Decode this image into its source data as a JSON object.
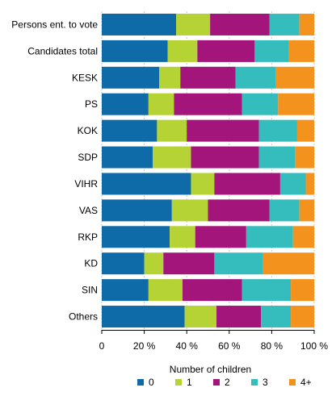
{
  "chart_data": {
    "type": "bar",
    "orientation": "horizontal",
    "stacked": true,
    "percent": true,
    "categories": [
      "Persons ent. to vote",
      "Candidates total",
      "KESK",
      "PS",
      "KOK",
      "SDP",
      "VIHR",
      "VAS",
      "RKP",
      "KD",
      "SIN",
      "Others"
    ],
    "series": [
      {
        "name": "0",
        "color": "#0f6ba8",
        "values": [
          35,
          31,
          27,
          22,
          26,
          24,
          42,
          33,
          32,
          20,
          22,
          39
        ]
      },
      {
        "name": "1",
        "color": "#b5d334",
        "values": [
          16,
          14,
          10,
          12,
          14,
          18,
          11,
          17,
          12,
          9,
          16,
          15
        ]
      },
      {
        "name": "2",
        "color": "#a3157a",
        "values": [
          28,
          27,
          26,
          32,
          34,
          32,
          31,
          29,
          24,
          24,
          28,
          21
        ]
      },
      {
        "name": "3",
        "color": "#35bcbd",
        "values": [
          14,
          16,
          19,
          17,
          18,
          17,
          12,
          14,
          22,
          23,
          23,
          14
        ]
      },
      {
        "name": "4+",
        "color": "#f4921e",
        "values": [
          7,
          12,
          18,
          17,
          8,
          9,
          4,
          7,
          10,
          24,
          11,
          11
        ]
      }
    ],
    "xlim": [
      0,
      100
    ],
    "x_ticks": [
      "0",
      "20 %",
      "40 %",
      "60 %",
      "80 %",
      "100 %"
    ],
    "x_tick_values": [
      0,
      20,
      40,
      60,
      80,
      100
    ],
    "legend_title": "Number of children",
    "legend_position": "bottom",
    "grid": true
  }
}
